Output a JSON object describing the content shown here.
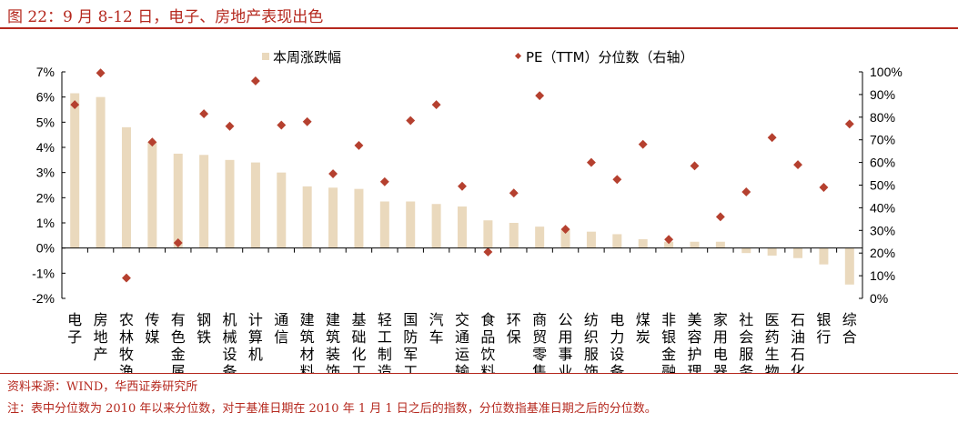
{
  "title": "图 22：9 月 8-12 日，电子、房地产表现出色",
  "source": "资料来源：WIND，华西证券研究所",
  "note": "注：表中分位数为 2010 年以来分位数，对于基准日期在 2010 年 1 月 1 日之后的指数，分位数指基准日期之后的分位数。",
  "colors": {
    "bar": "#ead9bd",
    "marker": "#b5402f"
  },
  "chart_data": {
    "type": "bar",
    "title": "",
    "categories": [
      "电子",
      "房地产",
      "农林牧渔",
      "传媒",
      "有色金属",
      "钢铁",
      "机械设备",
      "计算机",
      "通信",
      "建筑材料",
      "建筑装饰",
      "基础化工",
      "轻工制造",
      "国防军工",
      "汽车",
      "交通运输",
      "食品饮料",
      "环保",
      "商贸零售",
      "公用事业",
      "纺织服饰",
      "电力设备",
      "煤炭",
      "非银金融",
      "美容护理",
      "家用电器",
      "社会服务",
      "医药生物",
      "石油石化",
      "银行",
      "综合"
    ],
    "series": [
      {
        "name": "本周涨跌幅",
        "axis": "left",
        "type": "bar",
        "values": [
          6.15,
          6.0,
          4.8,
          4.2,
          3.75,
          3.7,
          3.5,
          3.4,
          3.0,
          2.45,
          2.4,
          2.35,
          1.85,
          1.85,
          1.75,
          1.65,
          1.1,
          1.0,
          0.85,
          0.75,
          0.65,
          0.55,
          0.35,
          0.25,
          0.25,
          0.25,
          -0.2,
          -0.3,
          -0.4,
          -0.65,
          -1.45
        ]
      },
      {
        "name": "PE（TTM）分位数（右轴）",
        "axis": "right",
        "type": "scatter",
        "values": [
          85.5,
          99.5,
          9,
          69,
          24.5,
          81.5,
          76,
          96,
          76.5,
          78,
          55,
          67.5,
          51.5,
          78.5,
          85.5,
          49.5,
          20.5,
          46.5,
          89.5,
          30.5,
          60,
          52.5,
          68,
          26,
          58.5,
          36,
          47,
          71,
          59,
          49,
          77
        ]
      }
    ],
    "yleft": {
      "lim": [
        -2,
        7
      ],
      "ticks": [
        "-2%",
        "-1%",
        "0%",
        "1%",
        "2%",
        "3%",
        "4%",
        "5%",
        "6%",
        "7%"
      ]
    },
    "yright": {
      "lim": [
        0,
        100
      ],
      "ticks": [
        "0%",
        "10%",
        "20%",
        "30%",
        "40%",
        "50%",
        "60%",
        "70%",
        "80%",
        "90%",
        "100%"
      ]
    },
    "legend": "top"
  }
}
